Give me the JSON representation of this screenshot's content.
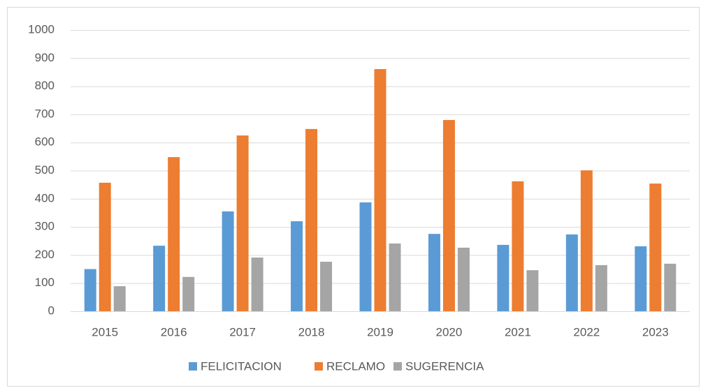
{
  "chart_data": {
    "type": "bar",
    "categories": [
      "2015",
      "2016",
      "2017",
      "2018",
      "2019",
      "2020",
      "2021",
      "2022",
      "2023"
    ],
    "series": [
      {
        "name": "FELICITACION",
        "color": "#5b9bd5",
        "values": [
          150,
          233,
          355,
          320,
          387,
          275,
          236,
          273,
          231
        ]
      },
      {
        "name": "RECLAMO",
        "color": "#ed7d31",
        "values": [
          457,
          548,
          625,
          648,
          861,
          680,
          462,
          501,
          454
        ]
      },
      {
        "name": "SUGERENCIA",
        "color": "#a5a5a5",
        "values": [
          89,
          122,
          191,
          176,
          241,
          226,
          146,
          164,
          169
        ]
      }
    ],
    "ylim": [
      0,
      1000
    ],
    "yticks": [
      0,
      100,
      200,
      300,
      400,
      500,
      600,
      700,
      800,
      900,
      1000
    ],
    "grid": true,
    "legend": "bottom"
  }
}
